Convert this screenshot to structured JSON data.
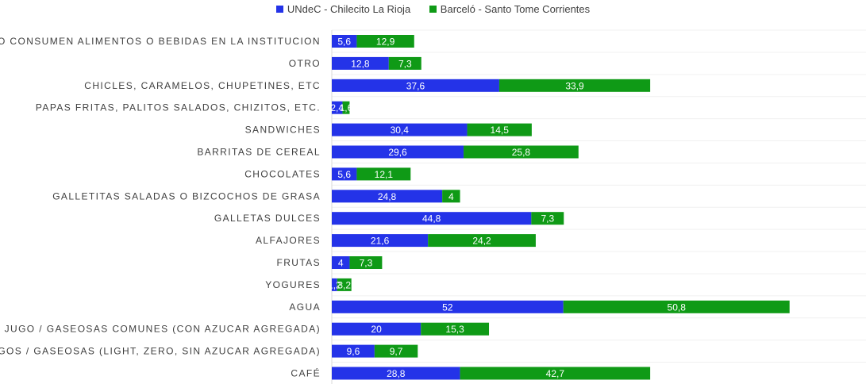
{
  "chart_data": {
    "type": "bar",
    "orientation": "horizontal",
    "stacked": true,
    "title": "",
    "xlabel": "",
    "ylabel": "",
    "legend_position": "top",
    "grid": false,
    "categories": [
      "NO CONSUMEN ALIMENTOS O BEBIDAS EN LA INSTITUCION",
      "OTRO",
      "CHICLES, CARAMELOS, CHUPETINES, ETC",
      "PAPAS FRITAS, PALITOS SALADOS, CHIZITOS, ETC.",
      "SANDWICHES",
      "BARRITAS DE CEREAL",
      "CHOCOLATES",
      "GALLETITAS SALADAS O BIZCOCHOS DE GRASA",
      "GALLETAS DULCES",
      "ALFAJORES",
      "FRUTAS",
      "YOGURES",
      "AGUA",
      "JUGO / GASEOSAS COMUNES (CON AZUCAR AGREGADA)",
      "JUGOS / GASEOSAS (LIGHT, ZERO, SIN AZUCAR AGREGADA)",
      "CAFÉ"
    ],
    "series": [
      {
        "name": "UNdeC - Chilecito La Rioja",
        "color": "#2433e8",
        "values": [
          5.6,
          12.8,
          37.6,
          2.4,
          30.4,
          29.6,
          5.6,
          24.8,
          44.8,
          21.6,
          4,
          1.2,
          52,
          20,
          9.6,
          28.8
        ],
        "labels": [
          "5,6",
          "12,8",
          "37,6",
          "2,4",
          "30,4",
          "29,6",
          "5,6",
          "24,8",
          "44,8",
          "21,6",
          "4",
          "1,2",
          "52",
          "20",
          "9,6",
          "28,8"
        ]
      },
      {
        "name": "Barceló - Santo Tome Corrientes",
        "color": "#0f9a16",
        "values": [
          12.9,
          7.3,
          33.9,
          1.6,
          14.5,
          25.8,
          12.1,
          4,
          7.3,
          24.2,
          7.3,
          3.2,
          50.8,
          15.3,
          9.7,
          42.7
        ],
        "labels": [
          "12,9",
          "7,3",
          "33,9",
          "1,6",
          "14,5",
          "25,8",
          "12,1",
          "4",
          "7,3",
          "24,2",
          "7,3",
          "3,2",
          "50,8",
          "15,3",
          "9,7",
          "42,7"
        ]
      }
    ]
  }
}
